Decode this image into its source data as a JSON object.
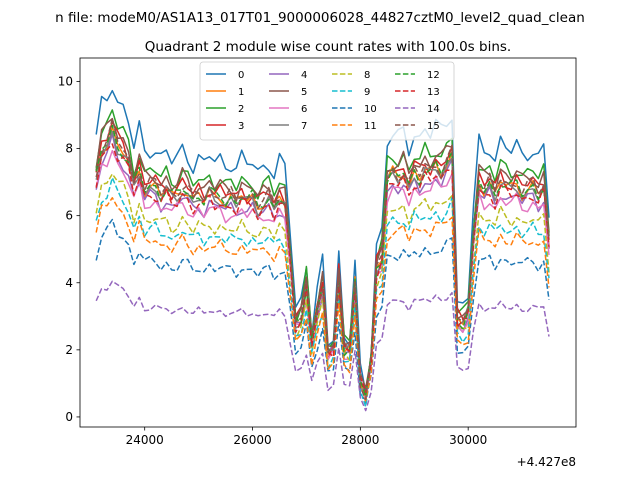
{
  "chart_data": {
    "type": "line",
    "suptitle": "n file: modeM0/AS1A13_017T01_9000006028_44827cztM0_level2_quad_clean",
    "title": "Quadrant 2 module wise count rates with 100.0s bins.",
    "xlabel": "",
    "ylabel": "",
    "x_offset_label": "+4.427e8",
    "xlim": [
      22800,
      32000
    ],
    "ylim": [
      -0.3,
      10.7
    ],
    "x_ticks": [
      24000,
      26000,
      28000,
      30000
    ],
    "y_ticks": [
      0,
      2,
      4,
      6,
      8,
      10
    ],
    "grid": false,
    "legend_position": "upper center",
    "legend_columns": 4,
    "x": [
      23100,
      23200,
      23300,
      23400,
      23500,
      23600,
      23700,
      23800,
      23900,
      24000,
      24100,
      24200,
      24300,
      24400,
      24500,
      24600,
      24700,
      24800,
      24900,
      25000,
      25100,
      25200,
      25300,
      25400,
      25500,
      25600,
      25700,
      25800,
      25900,
      26000,
      26100,
      26200,
      26300,
      26400,
      26500,
      26600,
      26700,
      26800,
      26900,
      27000,
      27100,
      27200,
      27300,
      27400,
      27500,
      27600,
      27700,
      27800,
      27900,
      28000,
      28100,
      28200,
      28300,
      28400,
      28500,
      28600,
      28700,
      28800,
      28900,
      29000,
      29100,
      29200,
      29300,
      29400,
      29500,
      29600,
      29700,
      29800,
      29900,
      30000,
      30100,
      30200,
      30300,
      30400,
      30500,
      30600,
      30700,
      30800,
      30900,
      31000,
      31100,
      31200,
      31300,
      31400,
      31500
    ],
    "base_profile": [
      8.3,
      9.3,
      9.5,
      10.0,
      9.4,
      9.2,
      8.8,
      8.0,
      8.6,
      7.9,
      8.0,
      8.0,
      7.7,
      7.9,
      7.6,
      7.7,
      8.0,
      7.8,
      7.5,
      7.7,
      7.5,
      7.8,
      7.6,
      7.7,
      7.5,
      7.6,
      7.4,
      7.7,
      7.5,
      7.6,
      7.3,
      7.5,
      7.6,
      7.2,
      7.6,
      7.4,
      5.5,
      3.3,
      3.5,
      4.6,
      2.6,
      3.7,
      4.6,
      2.2,
      2.4,
      4.9,
      2.4,
      2.3,
      4.6,
      1.3,
      0.7,
      2.0,
      5.2,
      5.6,
      8.2,
      8.4,
      8.3,
      8.5,
      8.0,
      8.5,
      8.3,
      8.6,
      8.4,
      8.7,
      8.5,
      8.8,
      9.1,
      3.4,
      3.3,
      3.6,
      6.3,
      8.2,
      7.9,
      8.1,
      7.7,
      8.2,
      8.0,
      7.9,
      8.1,
      7.8,
      7.9,
      8.0,
      7.7,
      8.0,
      6.0
    ],
    "series": [
      {
        "name": "0",
        "color": "#1f77b4",
        "dash": "solid",
        "scale": 1.0
      },
      {
        "name": "1",
        "color": "#ff7f0e",
        "dash": "solid",
        "scale": 0.86
      },
      {
        "name": "2",
        "color": "#2ca02c",
        "dash": "solid",
        "scale": 0.92
      },
      {
        "name": "3",
        "color": "#d62728",
        "dash": "solid",
        "scale": 0.88
      },
      {
        "name": "4",
        "color": "#9467bd",
        "dash": "solid",
        "scale": 0.82
      },
      {
        "name": "5",
        "color": "#8c564b",
        "dash": "solid",
        "scale": 0.9
      },
      {
        "name": "6",
        "color": "#e377c2",
        "dash": "solid",
        "scale": 0.8
      },
      {
        "name": "7",
        "color": "#7f7f7f",
        "dash": "solid",
        "scale": 0.85
      },
      {
        "name": "8",
        "color": "#bcbd22",
        "dash": "dashed",
        "scale": 0.74
      },
      {
        "name": "9",
        "color": "#17becf",
        "dash": "dashed",
        "scale": 0.7
      },
      {
        "name": "10",
        "color": "#1f77b4",
        "dash": "dashed",
        "scale": 0.58
      },
      {
        "name": "11",
        "color": "#ff7f0e",
        "dash": "dashed",
        "scale": 0.66
      },
      {
        "name": "12",
        "color": "#2ca02c",
        "dash": "dashed",
        "scale": 0.86
      },
      {
        "name": "13",
        "color": "#d62728",
        "dash": "dashed",
        "scale": 0.83
      },
      {
        "name": "14",
        "color": "#9467bd",
        "dash": "dashed",
        "scale": 0.41
      },
      {
        "name": "15",
        "color": "#8c564b",
        "dash": "dashed",
        "scale": 0.87
      }
    ]
  }
}
